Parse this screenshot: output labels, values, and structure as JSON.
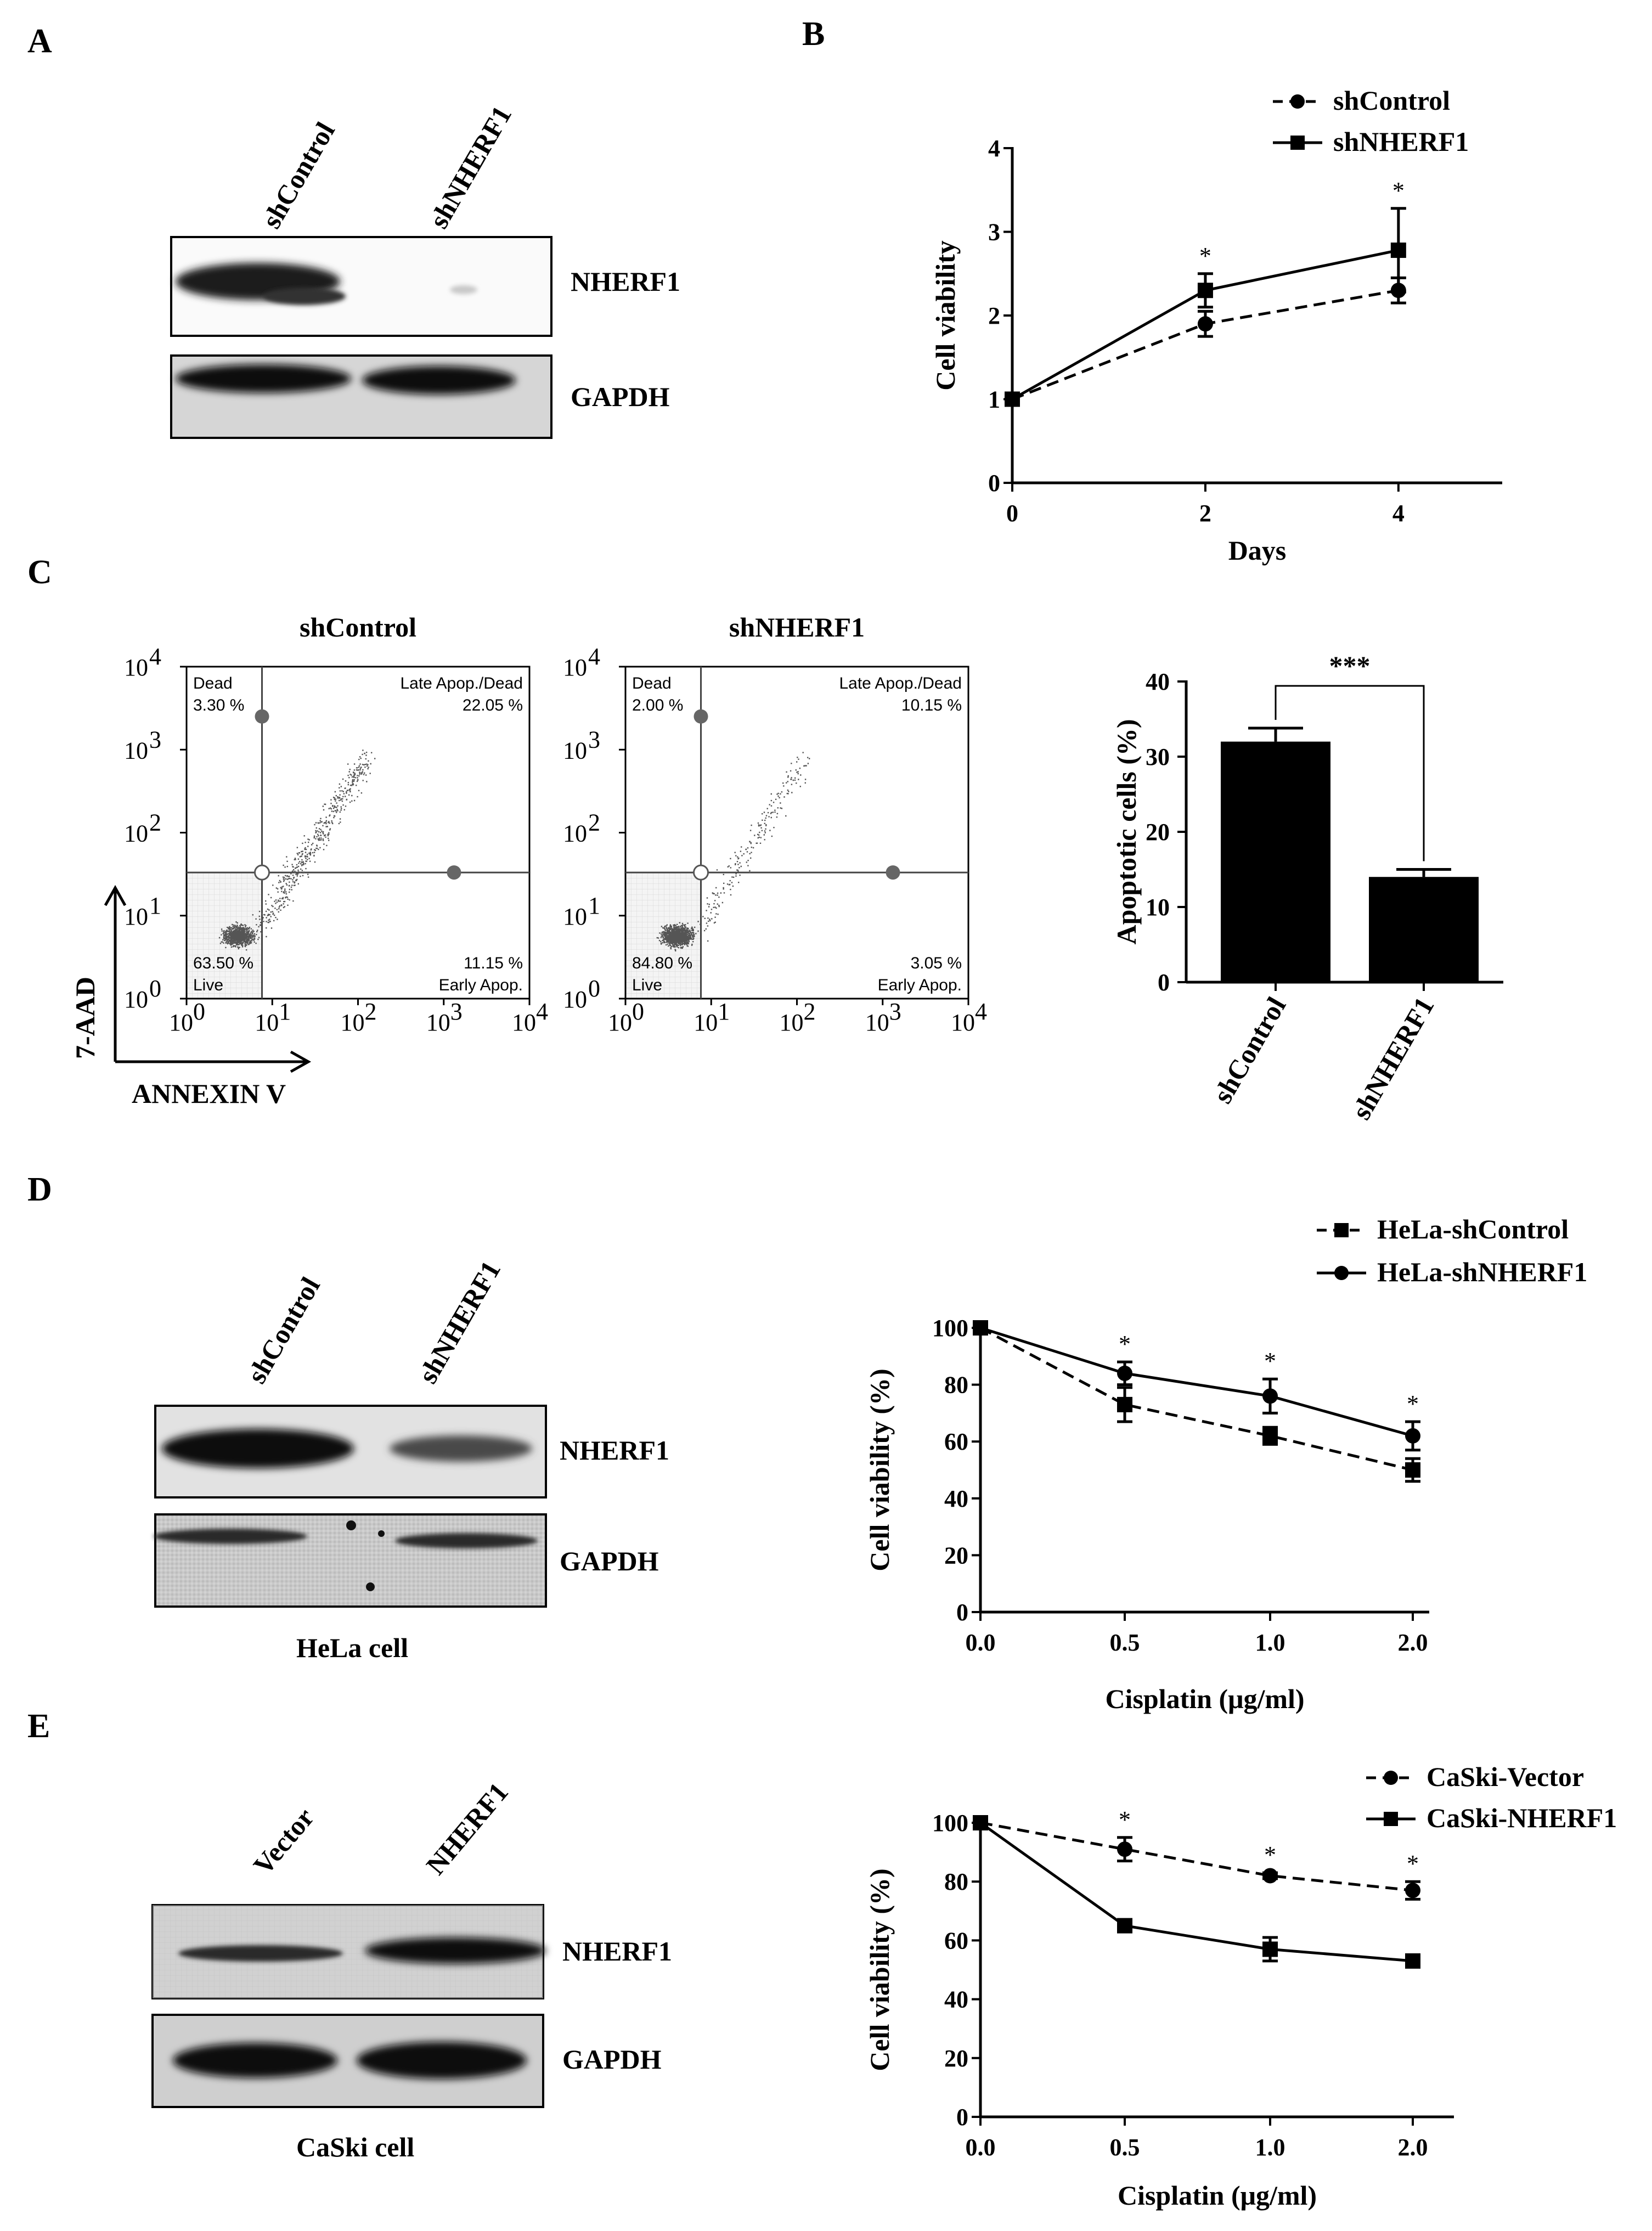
{
  "panels": {
    "A": {
      "label": "A",
      "lanes": [
        "shControl",
        "shNHERF1"
      ],
      "bands": [
        "NHERF1",
        "GAPDH"
      ]
    },
    "B": {
      "label": "B",
      "chart_data": {
        "type": "line",
        "xlabel": "Days",
        "ylabel": "Cell viability",
        "x": [
          0,
          2,
          4
        ],
        "xlim": [
          0,
          5.2
        ],
        "ylim": [
          0,
          4
        ],
        "xticks": [
          "0",
          "2",
          "4"
        ],
        "yticks": [
          "0",
          "1",
          "2",
          "3",
          "4"
        ],
        "legend_position": "top-right",
        "series": [
          {
            "name": "shControl",
            "style": "dashed",
            "marker": "circle",
            "values": [
              1.0,
              1.9,
              2.3
            ],
            "err": [
              0,
              0.15,
              0.15
            ]
          },
          {
            "name": "shNHERF1",
            "style": "solid",
            "marker": "square",
            "values": [
              1.0,
              2.3,
              2.78
            ],
            "err": [
              0,
              0.2,
              0.5
            ]
          }
        ],
        "annotations": [
          {
            "x": 2,
            "text": "*"
          },
          {
            "x": 4,
            "text": "*"
          }
        ]
      }
    },
    "C": {
      "label": "C",
      "flow": [
        {
          "title": "shControl",
          "q_dead": "Dead",
          "q_dead_val": "3.30 %",
          "q_late": "Late Apop./Dead",
          "q_late_val": "22.05 %",
          "q_live": "Live",
          "q_live_val": "63.50 %",
          "q_early": "Early Apop.",
          "q_early_val": "11.15 %"
        },
        {
          "title": "shNHERF1",
          "q_dead": "Dead",
          "q_dead_val": "2.00 %",
          "q_late": "Late Apop./Dead",
          "q_late_val": "10.15 %",
          "q_live": "Live",
          "q_live_val": "84.80 %",
          "q_early": "Early Apop.",
          "q_early_val": "3.05 %"
        }
      ],
      "flow_axis_ticks": [
        "10",
        "10",
        "10",
        "10",
        "10"
      ],
      "flow_axis_exponents": [
        "0",
        "1",
        "2",
        "3",
        "4"
      ],
      "flow_xlabel": "ANNEXIN V",
      "flow_ylabel": "7-AAD",
      "chart_data": {
        "type": "bar",
        "categories": [
          "shControl",
          "shNHERF1"
        ],
        "values": [
          32,
          14
        ],
        "err": [
          1.8,
          1.0
        ],
        "ylabel": "Apoptotic cells (%)",
        "ylim": [
          0,
          40
        ],
        "yticks": [
          "0",
          "10",
          "20",
          "30",
          "40"
        ],
        "significance": "***"
      }
    },
    "D": {
      "label": "D",
      "lanes": [
        "shControl",
        "shNHERF1"
      ],
      "bands": [
        "NHERF1",
        "GAPDH"
      ],
      "caption": "HeLa cell",
      "chart_data": {
        "type": "line",
        "xlabel": "Cisplatin (μg/ml)",
        "ylabel": "Cell viability (%)",
        "categories": [
          "0.0",
          "0.5",
          "1.0",
          "2.0"
        ],
        "ylim": [
          0,
          100
        ],
        "yticks": [
          "0",
          "20",
          "40",
          "60",
          "80",
          "100"
        ],
        "legend_position": "top-right",
        "series": [
          {
            "name": "HeLa-shControl",
            "style": "dashed",
            "marker": "square",
            "values": [
              100,
              73,
              62,
              50
            ],
            "err": [
              0,
              6,
              3,
              4
            ]
          },
          {
            "name": "HeLa-shNHERF1",
            "style": "solid",
            "marker": "circle",
            "values": [
              100,
              84,
              76,
              62
            ],
            "err": [
              0,
              4,
              6,
              5
            ]
          }
        ],
        "annotations": [
          {
            "x": "0.5",
            "text": "*"
          },
          {
            "x": "1.0",
            "text": "*"
          },
          {
            "x": "2.0",
            "text": "*"
          }
        ]
      }
    },
    "E": {
      "label": "E",
      "lanes": [
        "Vector",
        "NHERF1"
      ],
      "bands": [
        "NHERF1",
        "GAPDH"
      ],
      "caption": "CaSki cell",
      "chart_data": {
        "type": "line",
        "xlabel": "Cisplatin (μg/ml)",
        "ylabel": "Cell viability (%)",
        "categories": [
          "0.0",
          "0.5",
          "1.0",
          "2.0"
        ],
        "ylim": [
          0,
          100
        ],
        "yticks": [
          "0",
          "20",
          "40",
          "60",
          "80",
          "100"
        ],
        "legend_position": "top-right",
        "series": [
          {
            "name": "CaSki-Vector",
            "style": "dashed",
            "marker": "circle",
            "values": [
              100,
              91,
              82,
              77
            ],
            "err": [
              0,
              4,
              1,
              3
            ]
          },
          {
            "name": "CaSki-NHERF1",
            "style": "solid",
            "marker": "square",
            "values": [
              100,
              65,
              57,
              53
            ],
            "err": [
              0,
              1,
              4,
              1
            ]
          }
        ],
        "annotations": [
          {
            "x": "0.5",
            "text": "*"
          },
          {
            "x": "1.0",
            "text": "*"
          },
          {
            "x": "2.0",
            "text": "*"
          }
        ]
      }
    }
  }
}
